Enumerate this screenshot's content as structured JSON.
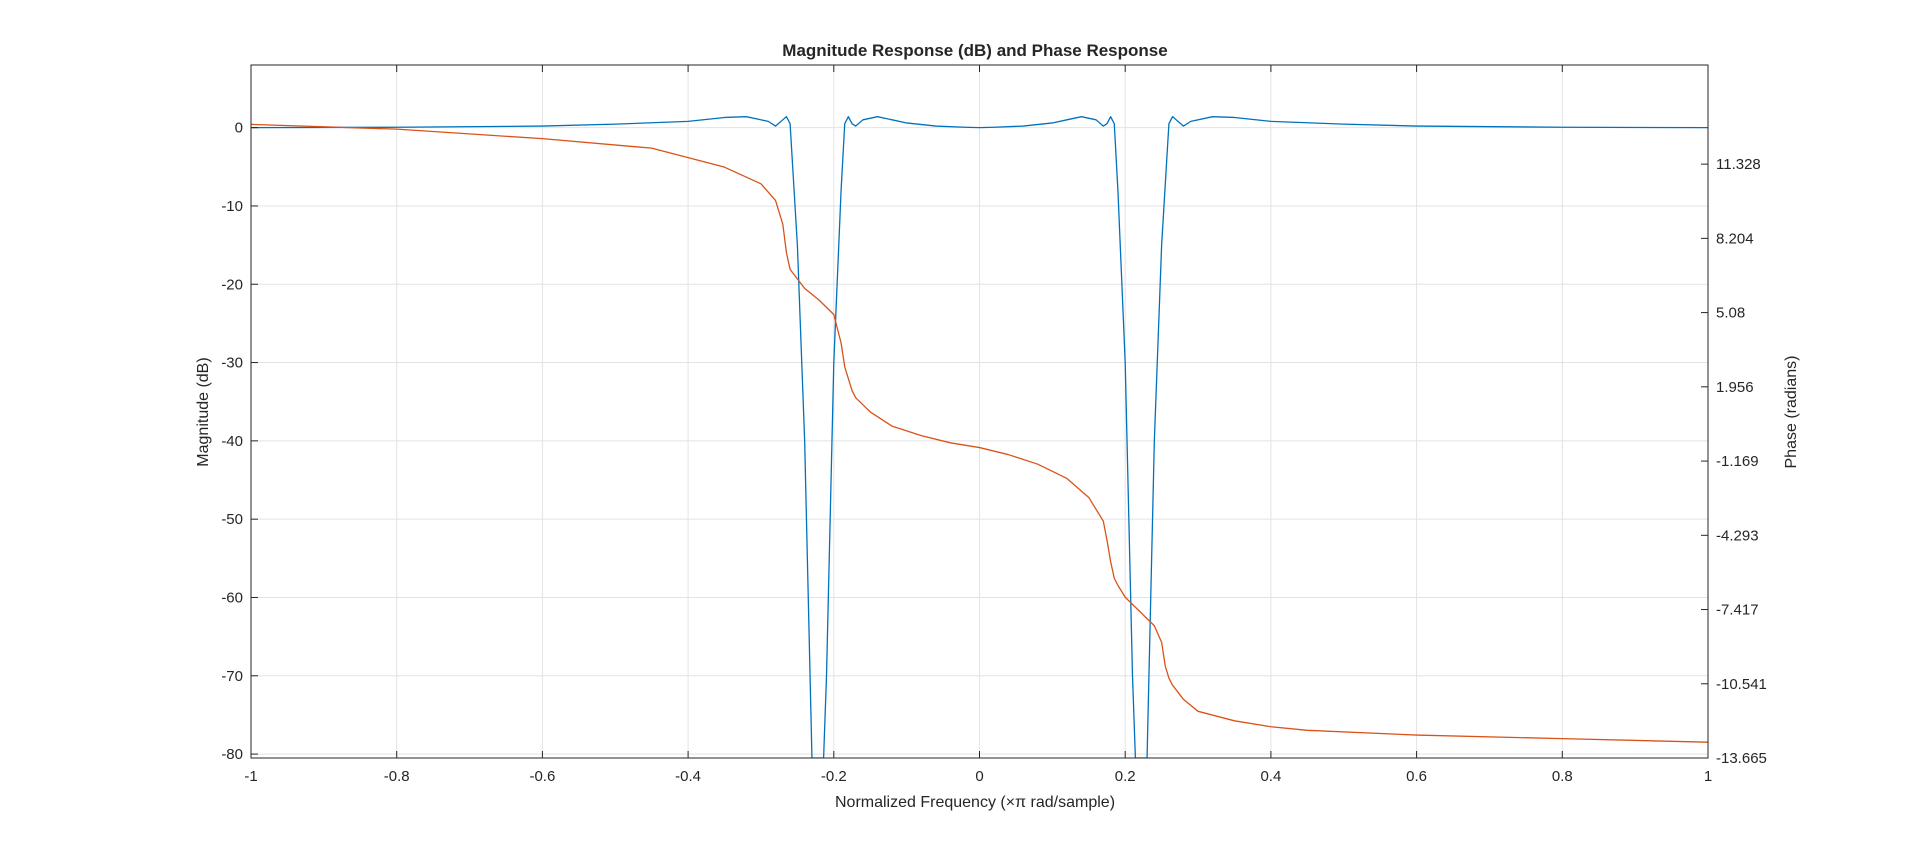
{
  "chart_data": {
    "type": "line",
    "title": "Magnitude Response (dB) and Phase Response",
    "xlabel": "Normalized Frequency (×π rad/sample)",
    "ylabel_left": "Magnitude (dB)",
    "ylabel_right": "Phase (radians)",
    "xlim": [
      -1,
      1
    ],
    "ylim_left": [
      -80.5,
      8
    ],
    "ylim_right": [
      -13.665,
      15.5
    ],
    "grid": true,
    "x_ticks": [
      "-1",
      "-0.8",
      "-0.6",
      "-0.4",
      "-0.2",
      "0",
      "0.2",
      "0.4",
      "0.6",
      "0.8",
      "1"
    ],
    "x_tick_values": [
      -1,
      -0.8,
      -0.6,
      -0.4,
      -0.2,
      0,
      0.2,
      0.4,
      0.6,
      0.8,
      1
    ],
    "y_ticks_left": [
      "0",
      "-10",
      "-20",
      "-30",
      "-40",
      "-50",
      "-60",
      "-70",
      "-80"
    ],
    "y_tick_values_left": [
      0,
      -10,
      -20,
      -30,
      -40,
      -50,
      -60,
      -70,
      -80
    ],
    "y_ticks_right": [
      "11.328",
      "8.204",
      "5.08",
      "1.956",
      "-1.169",
      "-4.293",
      "-7.417",
      "-10.541",
      "-13.665"
    ],
    "y_tick_values_right": [
      11.328,
      8.204,
      5.08,
      1.956,
      -1.169,
      -4.293,
      -7.417,
      -10.541,
      -13.665
    ],
    "series": [
      {
        "color": "#0072bd",
        "axis": "left",
        "x": [
          -1,
          -0.8,
          -0.6,
          -0.5,
          -0.4,
          -0.35,
          -0.32,
          -0.29,
          -0.28,
          -0.27,
          -0.265,
          -0.26,
          -0.25,
          -0.24,
          -0.23,
          -0.225,
          -0.222,
          -0.218,
          -0.214,
          -0.21,
          -0.2,
          -0.19,
          -0.185,
          -0.18,
          -0.175,
          -0.17,
          -0.16,
          -0.14,
          -0.12,
          -0.1,
          -0.06,
          -0.02,
          0,
          0.02,
          0.06,
          0.1,
          0.12,
          0.14,
          0.16,
          0.17,
          0.175,
          0.18,
          0.185,
          0.19,
          0.2,
          0.21,
          0.214,
          0.218,
          0.222,
          0.225,
          0.23,
          0.24,
          0.25,
          0.26,
          0.265,
          0.27,
          0.28,
          0.29,
          0.32,
          0.35,
          0.4,
          0.5,
          0.6,
          0.8,
          1
        ],
        "y": [
          0,
          0.05,
          0.2,
          0.45,
          0.8,
          1.3,
          1.4,
          0.8,
          0.2,
          1.0,
          1.4,
          0.5,
          -15,
          -40,
          -80.5,
          -80.5,
          -80.5,
          -80.5,
          -80.5,
          -70,
          -30,
          -8,
          0.5,
          1.4,
          0.5,
          0.2,
          1.0,
          1.4,
          1.0,
          0.6,
          0.2,
          0.05,
          0,
          0.05,
          0.2,
          0.6,
          1.0,
          1.4,
          1.0,
          0.2,
          0.5,
          1.4,
          0.5,
          -8,
          -30,
          -70,
          -80.5,
          -80.5,
          -80.5,
          -80.5,
          -80.5,
          -40,
          -15,
          0.5,
          1.4,
          1.0,
          0.2,
          0.8,
          1.4,
          1.3,
          0.8,
          0.45,
          0.2,
          0.05,
          0
        ]
      },
      {
        "color": "#d95319",
        "axis": "right",
        "x": [
          -1,
          -0.8,
          -0.6,
          -0.45,
          -0.4,
          -0.35,
          -0.3,
          -0.28,
          -0.27,
          -0.265,
          -0.26,
          -0.255,
          -0.25,
          -0.24,
          -0.22,
          -0.2,
          -0.19,
          -0.185,
          -0.18,
          -0.175,
          -0.17,
          -0.15,
          -0.12,
          -0.08,
          -0.04,
          0,
          0.04,
          0.08,
          0.12,
          0.15,
          0.17,
          0.175,
          0.18,
          0.185,
          0.19,
          0.2,
          0.22,
          0.24,
          0.25,
          0.255,
          0.26,
          0.265,
          0.27,
          0.28,
          0.3,
          0.35,
          0.4,
          0.45,
          0.6,
          0.8,
          1
        ],
        "y": [
          13.0,
          12.8,
          12.4,
          12.0,
          11.6,
          11.2,
          10.5,
          9.8,
          8.8,
          7.6,
          6.9,
          6.7,
          6.5,
          6.1,
          5.6,
          5.0,
          3.8,
          2.8,
          2.3,
          1.8,
          1.5,
          0.9,
          0.3,
          -0.1,
          -0.4,
          -0.6,
          -0.9,
          -1.3,
          -1.9,
          -2.7,
          -3.7,
          -4.5,
          -5.4,
          -6.1,
          -6.4,
          -6.9,
          -7.5,
          -8.1,
          -8.8,
          -9.8,
          -10.3,
          -10.6,
          -10.8,
          -11.2,
          -11.7,
          -12.1,
          -12.35,
          -12.5,
          -12.7,
          -12.85,
          -13.0
        ]
      }
    ]
  }
}
